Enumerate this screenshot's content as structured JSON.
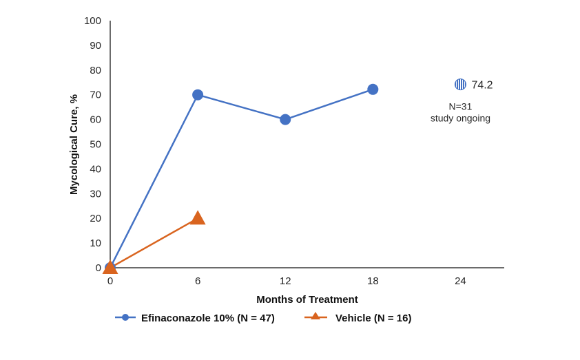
{
  "chart_data": {
    "type": "line",
    "title": "",
    "xlabel": "Months of Treatment",
    "ylabel": "Mycological Cure, %",
    "xlim": [
      0,
      27
    ],
    "ylim": [
      0,
      100
    ],
    "x_ticks": [
      0,
      6,
      12,
      18,
      24
    ],
    "y_ticks": [
      0,
      10,
      20,
      30,
      40,
      50,
      60,
      70,
      80,
      90,
      100
    ],
    "grid": false,
    "legend_position": "bottom",
    "series": [
      {
        "name": "Efinaconazole 10% (N = 47)",
        "color": "#4472C4",
        "marker": "circle",
        "x": [
          0,
          6,
          12,
          18
        ],
        "values": [
          0,
          70,
          60,
          72.2
        ]
      },
      {
        "name": "Vehicle (N = 16)",
        "color": "#D9641F",
        "marker": "triangle",
        "x": [
          0,
          6
        ],
        "values": [
          0,
          20
        ]
      }
    ],
    "annotation": {
      "value_label": "74.2",
      "value": 74.2,
      "x": 24,
      "marker": "striped-circle",
      "color": "#4472C4",
      "lines": [
        "N=31",
        "study ongoing"
      ]
    }
  }
}
